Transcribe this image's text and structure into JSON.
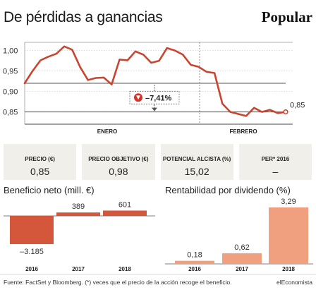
{
  "header": {
    "title": "De pérdidas a ganancias",
    "brand": "Popular"
  },
  "chart_data": [
    {
      "type": "line",
      "title": "",
      "xlabel": "",
      "ylabel": "",
      "ylim": [
        0.82,
        1.02
      ],
      "y_ticks": [
        "1,00",
        "0,95",
        "0,90",
        "0,85"
      ],
      "y_tick_values": [
        1.0,
        0.95,
        0.9,
        0.85
      ],
      "x_labels": [
        "ENERO",
        "FEBRERO"
      ],
      "grid": true,
      "series": [
        {
          "values": [
            0.92,
            0.95,
            0.976,
            0.985,
            0.992,
            1.01,
            1.002,
            0.96,
            0.928,
            0.933,
            0.934,
            0.917,
            0.978,
            0.976,
            0.998,
            0.99,
            0.97,
            0.975,
            1.006,
            1.0,
            0.99,
            0.965,
            0.96,
            0.948,
            0.945,
            0.87,
            0.85,
            0.845,
            0.84,
            0.86,
            0.85,
            0.855,
            0.847,
            0.85
          ]
        }
      ],
      "reference_lines": [
        0.92,
        0.85
      ],
      "annotation": "–7,41%",
      "end_label": "0,85"
    },
    {
      "type": "bar",
      "title": "Beneficio neto (mill. €)",
      "categories": [
        "2016",
        "2017",
        "2018"
      ],
      "values": [
        -3185,
        389,
        601
      ],
      "value_labels": [
        "–3.185",
        "389",
        "601"
      ]
    },
    {
      "type": "bar",
      "title": "Rentabilidad por dividendo (%)",
      "categories": [
        "2016",
        "2017",
        "2018"
      ],
      "values": [
        0.18,
        0.62,
        3.29
      ],
      "value_labels": [
        "0,18",
        "0,62",
        "3,29"
      ]
    }
  ],
  "kpis": [
    {
      "label": "PRECIO (€)",
      "value": "0,85"
    },
    {
      "label": "PRECIO OBJETIVO (€)",
      "value": "0,98"
    },
    {
      "label": "POTENCIAL ALCISTA (%)",
      "value": "15,02"
    },
    {
      "label": "PER* 2016",
      "value": "–"
    }
  ],
  "footer": {
    "source": "Fuente: FactSet y Bloomberg. (*) veces que el precio de la acción recoge el beneficio.",
    "brand": "elEconomista"
  },
  "colors": {
    "line": "#c9452f",
    "bar_dark": "#d4573b",
    "bar_light": "#f0a07e",
    "kpi_bg": "#f0efea",
    "badge_red": "#d6322a"
  }
}
